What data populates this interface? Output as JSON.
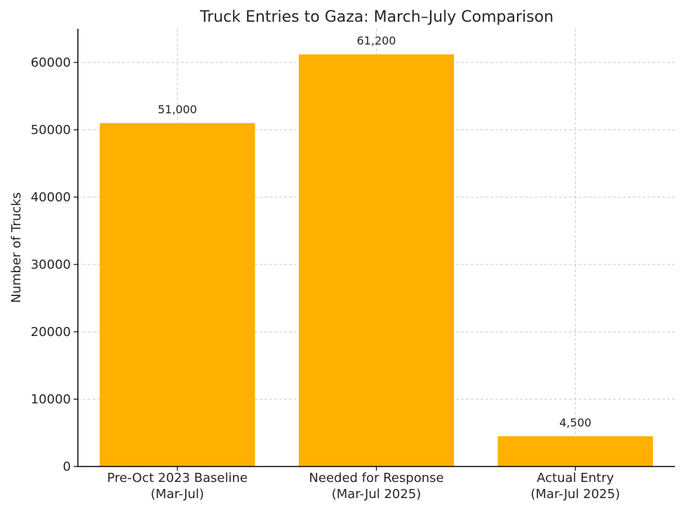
{
  "chart_data": {
    "type": "bar",
    "title": "Truck Entries to Gaza: March–July Comparison",
    "xlabel": "",
    "ylabel": "Number of Trucks",
    "categories": [
      [
        "Pre-Oct 2023 Baseline",
        "(Mar-Jul)"
      ],
      [
        "Needed for Response",
        "(Mar-Jul 2025)"
      ],
      [
        "Actual Entry",
        "(Mar-Jul 2025)"
      ]
    ],
    "values": [
      51000,
      61200,
      4500
    ],
    "data_labels": [
      "51,000",
      "61,200",
      "4,500"
    ],
    "ylim": [
      0,
      65000
    ],
    "yticks": [
      0,
      10000,
      20000,
      30000,
      40000,
      50000,
      60000
    ],
    "grid": true,
    "bar_color": "#FFB000"
  }
}
